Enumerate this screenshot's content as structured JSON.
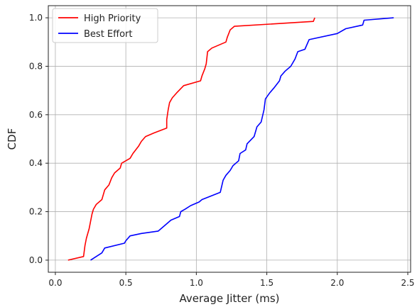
{
  "chart_data": {
    "type": "line",
    "title": "",
    "xlabel": "Average Jitter (ms)",
    "ylabel": "CDF",
    "xlim": [
      -0.05,
      2.52
    ],
    "ylim": [
      -0.05,
      1.05
    ],
    "x_ticks": [
      0.0,
      0.5,
      1.0,
      1.5,
      2.0,
      2.5
    ],
    "x_tick_labels": [
      "0.0",
      "0.5",
      "1.0",
      "1.5",
      "2.0",
      "2.5"
    ],
    "y_ticks": [
      0.0,
      0.2,
      0.4,
      0.6,
      0.8,
      1.0
    ],
    "y_tick_labels": [
      "0.0",
      "0.2",
      "0.4",
      "0.6",
      "0.8",
      "1.0"
    ],
    "grid": true,
    "legend_position": "top-left",
    "series": [
      {
        "name": "High Priority",
        "color": "#ff0000",
        "points": [
          [
            0.09,
            0.0
          ],
          [
            0.2,
            0.015
          ],
          [
            0.21,
            0.06
          ],
          [
            0.22,
            0.09
          ],
          [
            0.24,
            0.13
          ],
          [
            0.25,
            0.16
          ],
          [
            0.26,
            0.19
          ],
          [
            0.27,
            0.21
          ],
          [
            0.29,
            0.23
          ],
          [
            0.33,
            0.25
          ],
          [
            0.35,
            0.29
          ],
          [
            0.38,
            0.31
          ],
          [
            0.4,
            0.34
          ],
          [
            0.42,
            0.36
          ],
          [
            0.46,
            0.38
          ],
          [
            0.47,
            0.4
          ],
          [
            0.53,
            0.42
          ],
          [
            0.55,
            0.44
          ],
          [
            0.59,
            0.47
          ],
          [
            0.61,
            0.49
          ],
          [
            0.64,
            0.51
          ],
          [
            0.7,
            0.525
          ],
          [
            0.79,
            0.545
          ],
          [
            0.79,
            0.58
          ],
          [
            0.8,
            0.62
          ],
          [
            0.81,
            0.65
          ],
          [
            0.83,
            0.67
          ],
          [
            0.86,
            0.69
          ],
          [
            0.91,
            0.72
          ],
          [
            1.03,
            0.74
          ],
          [
            1.04,
            0.76
          ],
          [
            1.06,
            0.79
          ],
          [
            1.07,
            0.81
          ],
          [
            1.08,
            0.86
          ],
          [
            1.11,
            0.875
          ],
          [
            1.17,
            0.89
          ],
          [
            1.21,
            0.9
          ],
          [
            1.22,
            0.92
          ],
          [
            1.24,
            0.95
          ],
          [
            1.27,
            0.965
          ],
          [
            1.83,
            0.985
          ],
          [
            1.84,
            1.0
          ]
        ]
      },
      {
        "name": "Best Effort",
        "color": "#0000ff",
        "points": [
          [
            0.25,
            0.0
          ],
          [
            0.33,
            0.03
          ],
          [
            0.35,
            0.05
          ],
          [
            0.49,
            0.07
          ],
          [
            0.5,
            0.08
          ],
          [
            0.53,
            0.1
          ],
          [
            0.61,
            0.11
          ],
          [
            0.73,
            0.12
          ],
          [
            0.79,
            0.15
          ],
          [
            0.82,
            0.165
          ],
          [
            0.88,
            0.18
          ],
          [
            0.89,
            0.2
          ],
          [
            0.92,
            0.21
          ],
          [
            0.96,
            0.225
          ],
          [
            1.02,
            0.24
          ],
          [
            1.04,
            0.25
          ],
          [
            1.17,
            0.28
          ],
          [
            1.19,
            0.33
          ],
          [
            1.21,
            0.35
          ],
          [
            1.24,
            0.37
          ],
          [
            1.26,
            0.39
          ],
          [
            1.3,
            0.41
          ],
          [
            1.31,
            0.44
          ],
          [
            1.35,
            0.455
          ],
          [
            1.36,
            0.48
          ],
          [
            1.41,
            0.51
          ],
          [
            1.43,
            0.55
          ],
          [
            1.46,
            0.57
          ],
          [
            1.48,
            0.62
          ],
          [
            1.49,
            0.665
          ],
          [
            1.52,
            0.69
          ],
          [
            1.55,
            0.71
          ],
          [
            1.59,
            0.74
          ],
          [
            1.6,
            0.76
          ],
          [
            1.63,
            0.78
          ],
          [
            1.67,
            0.8
          ],
          [
            1.7,
            0.83
          ],
          [
            1.72,
            0.86
          ],
          [
            1.77,
            0.87
          ],
          [
            1.8,
            0.91
          ],
          [
            2.0,
            0.935
          ],
          [
            2.06,
            0.955
          ],
          [
            2.18,
            0.97
          ],
          [
            2.19,
            0.99
          ],
          [
            2.4,
            1.0
          ]
        ]
      }
    ]
  }
}
